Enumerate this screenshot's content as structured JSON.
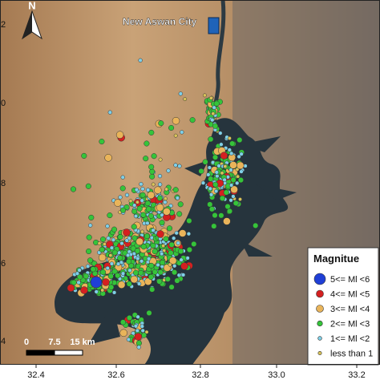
{
  "map": {
    "place_label": "New Aswan City",
    "north": "N",
    "x_ticks": [
      "32.4",
      "32.6",
      "32.8",
      "33.0",
      "33.2"
    ],
    "y_ticks": [
      "2",
      "0",
      "8",
      "6",
      "4"
    ],
    "scale_bar": [
      "0",
      "7.5",
      "15 km"
    ],
    "legend": {
      "title": "Magnitue",
      "items": [
        {
          "label": "5<= Ml <6",
          "color": "#1f3fd6"
        },
        {
          "label": "4<= Ml <5",
          "color": "#d42020"
        },
        {
          "label": "3<= Ml <4",
          "color": "#e9b45a"
        },
        {
          "label": "2<= Ml <3",
          "color": "#35c43a"
        },
        {
          "label": "1<= Ml <2",
          "color": "#7fd0e8"
        },
        {
          "label": "less than 1",
          "color": "#d8c25a"
        }
      ]
    }
  }
}
